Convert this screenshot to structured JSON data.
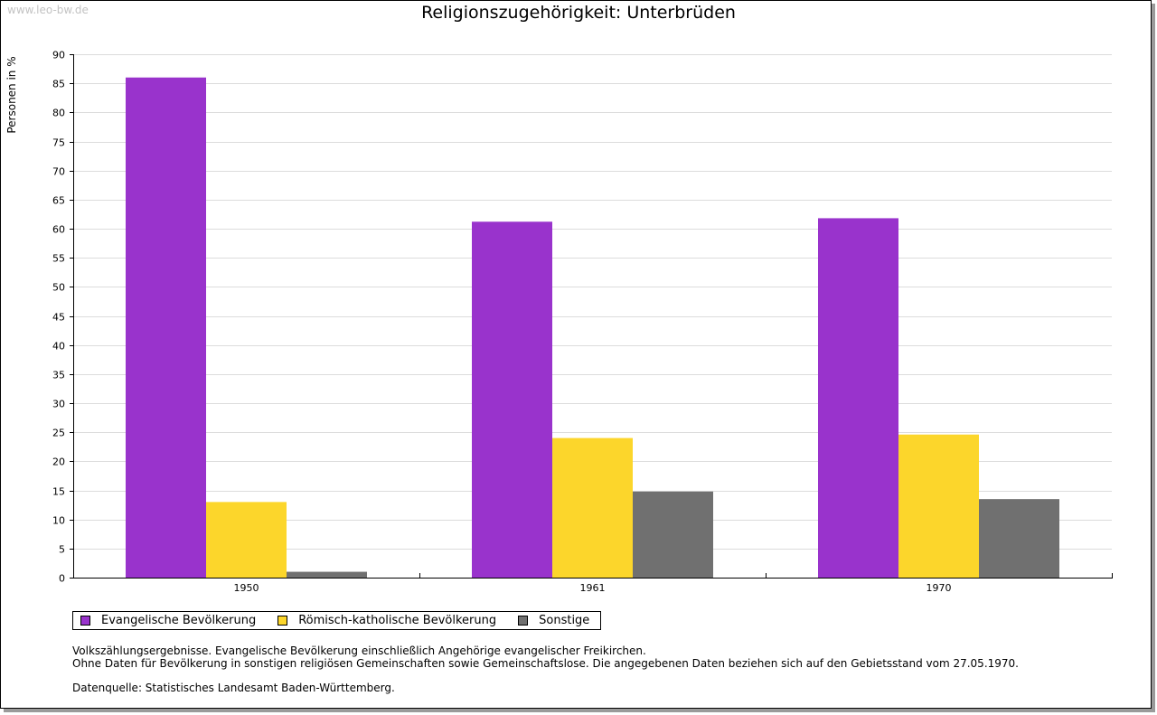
{
  "watermark": "www.leo-bw.de",
  "chart_data": {
    "type": "bar",
    "title": "Religionszugehörigkeit: Unterbrüden",
    "xlabel": "",
    "ylabel": "Personen in %",
    "ylim": [
      0,
      90
    ],
    "ytick_step": 5,
    "grid": true,
    "categories": [
      "1950",
      "1961",
      "1970"
    ],
    "series": [
      {
        "name": "Evangelische Bevölkerung",
        "color": "#9933cc",
        "values": [
          86.0,
          61.2,
          61.8
        ]
      },
      {
        "name": "Römisch-katholische Bevölkerung",
        "color": "#fcd62b",
        "values": [
          13.0,
          24.0,
          24.6
        ]
      },
      {
        "name": "Sonstige",
        "color": "#707070",
        "values": [
          1.0,
          14.8,
          13.5
        ]
      }
    ],
    "legend_position": "bottom-left"
  },
  "notes": [
    "Volkszählungsergebnisse. Evangelische Bevölkerung einschließlich Angehörige evangelischer Freikirchen.",
    "Ohne Daten für Bevölkerung in sonstigen religiösen Gemeinschaften sowie Gemeinschaftslose. Die angegebenen Daten beziehen sich auf den Gebietsstand vom 27.05.1970."
  ],
  "source": "Datenquelle: Statistisches Landesamt Baden-Württemberg."
}
